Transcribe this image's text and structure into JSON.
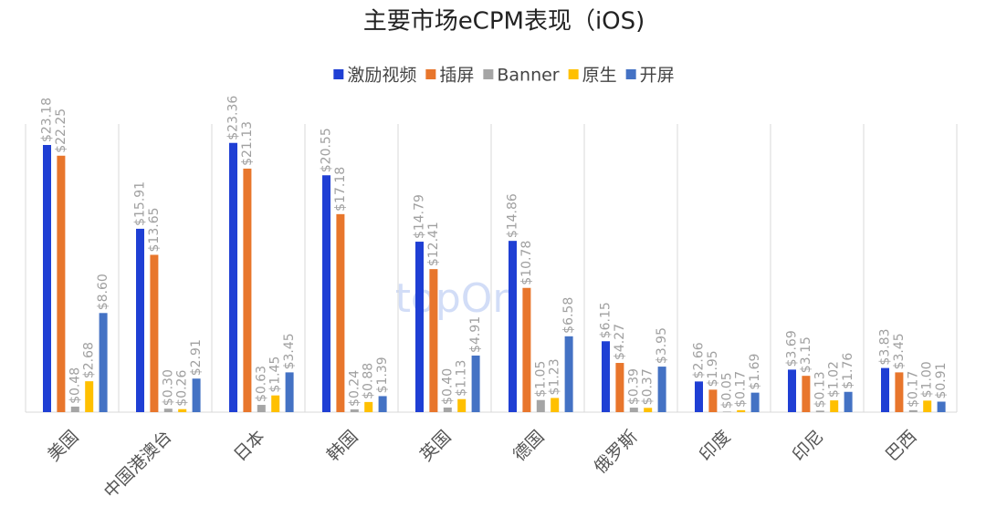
{
  "chart_data": {
    "type": "bar",
    "title": "主要市场eCPM表现（iOS)",
    "watermark": "topOn",
    "categories": [
      "美国",
      "中国港澳台",
      "日本",
      "韩国",
      "英国",
      "德国",
      "俄罗斯",
      "印度",
      "印尼",
      "巴西"
    ],
    "ylim": [
      0,
      25
    ],
    "series": [
      {
        "name": "激励视频",
        "color": "#1f3fd4",
        "values": [
          23.18,
          15.91,
          23.36,
          20.55,
          14.79,
          14.86,
          6.15,
          2.66,
          3.69,
          3.83
        ],
        "value_labels": [
          "$23.18",
          "$15.91",
          "$23.36",
          "$20.55",
          "$14.79",
          "$14.86",
          "$6.15",
          "$2.66",
          "$3.69",
          "$3.83"
        ]
      },
      {
        "name": "插屏",
        "color": "#e8762c",
        "values": [
          22.25,
          13.65,
          21.13,
          17.18,
          12.41,
          10.78,
          4.27,
          1.95,
          3.15,
          3.45
        ],
        "value_labels": [
          "$22.25",
          "$13.65",
          "$21.13",
          "$17.18",
          "$12.41",
          "$10.78",
          "$4.27",
          "$1.95",
          "$3.15",
          "$3.45"
        ]
      },
      {
        "name": "Banner",
        "color": "#a5a5a5",
        "values": [
          0.48,
          0.3,
          0.63,
          0.24,
          0.4,
          1.05,
          0.39,
          0.05,
          0.13,
          0.17
        ],
        "value_labels": [
          "$0.48",
          "$0.30",
          "$0.63",
          "$0.24",
          "$0.40",
          "$1.05",
          "$0.39",
          "$0.05",
          "$0.13",
          "$0.17"
        ]
      },
      {
        "name": "原生",
        "color": "#ffc000",
        "values": [
          2.68,
          0.26,
          1.45,
          0.88,
          1.13,
          1.23,
          0.37,
          0.17,
          1.02,
          1.0
        ],
        "value_labels": [
          "$2.68",
          "$0.26",
          "$1.45",
          "$0.88",
          "$1.13",
          "$1.23",
          "$0.37",
          "$0.17",
          "$1.02",
          "$1.00"
        ]
      },
      {
        "name": "开屏",
        "color": "#4472c4",
        "values": [
          8.6,
          2.91,
          3.45,
          1.39,
          4.91,
          6.58,
          3.95,
          1.69,
          1.76,
          0.91
        ],
        "value_labels": [
          "$8.60",
          "$2.91",
          "$3.45",
          "$1.39",
          "$4.91",
          "$6.58",
          "$3.95",
          "$1.69",
          "$1.76",
          "$0.91"
        ]
      }
    ]
  }
}
